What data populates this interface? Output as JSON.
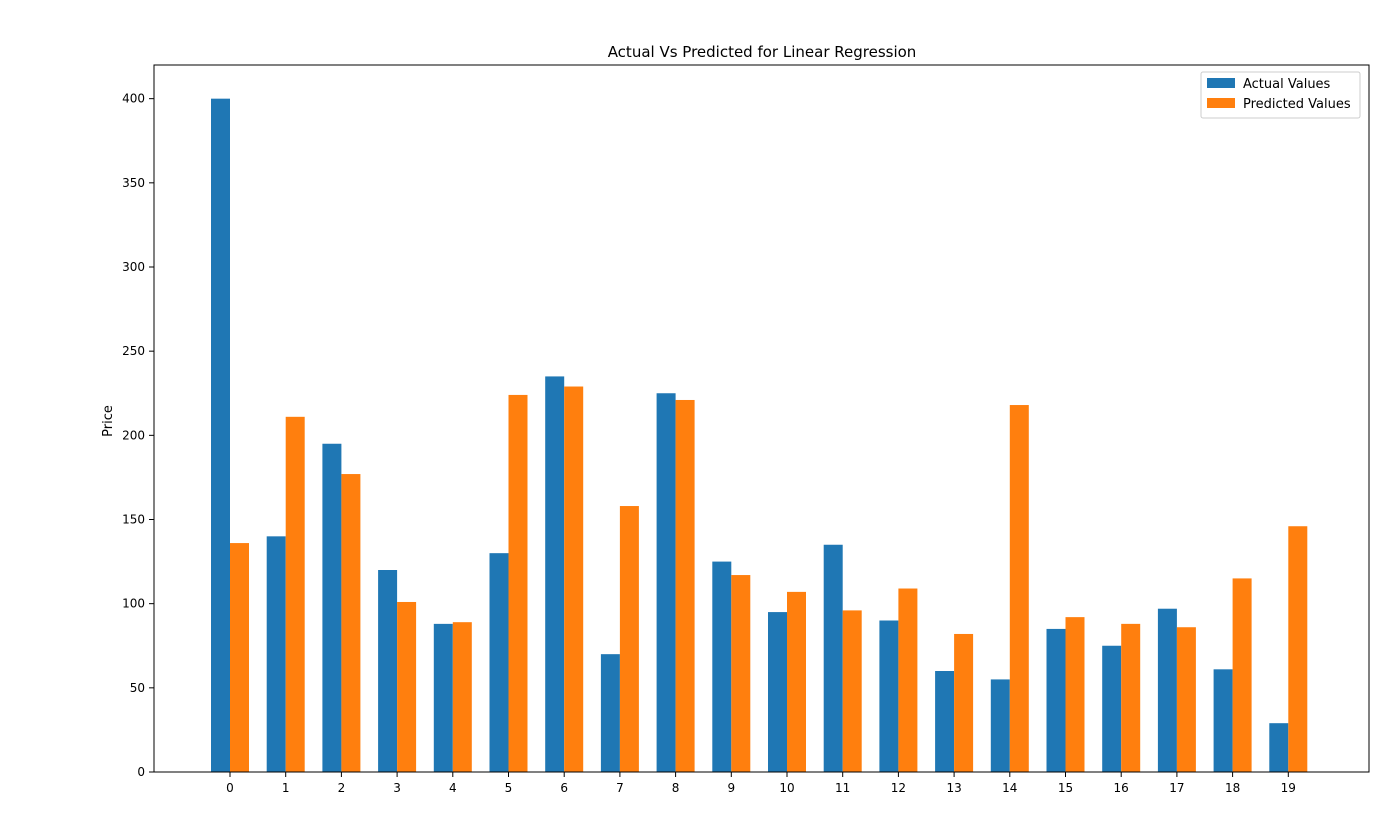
{
  "chart_data": {
    "type": "bar",
    "title": "Actual Vs Predicted for Linear Regression",
    "xlabel": "",
    "ylabel": "Price",
    "ylim": [
      0,
      420
    ],
    "yticks": [
      0,
      50,
      100,
      150,
      200,
      250,
      300,
      350,
      400
    ],
    "categories": [
      "0",
      "1",
      "2",
      "3",
      "4",
      "5",
      "6",
      "7",
      "8",
      "9",
      "10",
      "11",
      "12",
      "13",
      "14",
      "15",
      "16",
      "17",
      "18",
      "19"
    ],
    "series": [
      {
        "name": "Actual Values",
        "color": "#1f77b4",
        "values": [
          400,
          140,
          195,
          120,
          88,
          130,
          235,
          70,
          225,
          125,
          95,
          135,
          90,
          60,
          55,
          85,
          75,
          97,
          61,
          29
        ]
      },
      {
        "name": "Predicted Values",
        "color": "#ff7f0e",
        "values": [
          136,
          211,
          177,
          101,
          89,
          224,
          229,
          158,
          221,
          117,
          107,
          96,
          109,
          82,
          218,
          92,
          88,
          86,
          115,
          146
        ]
      }
    ],
    "grid": false,
    "legend": "top-right"
  }
}
